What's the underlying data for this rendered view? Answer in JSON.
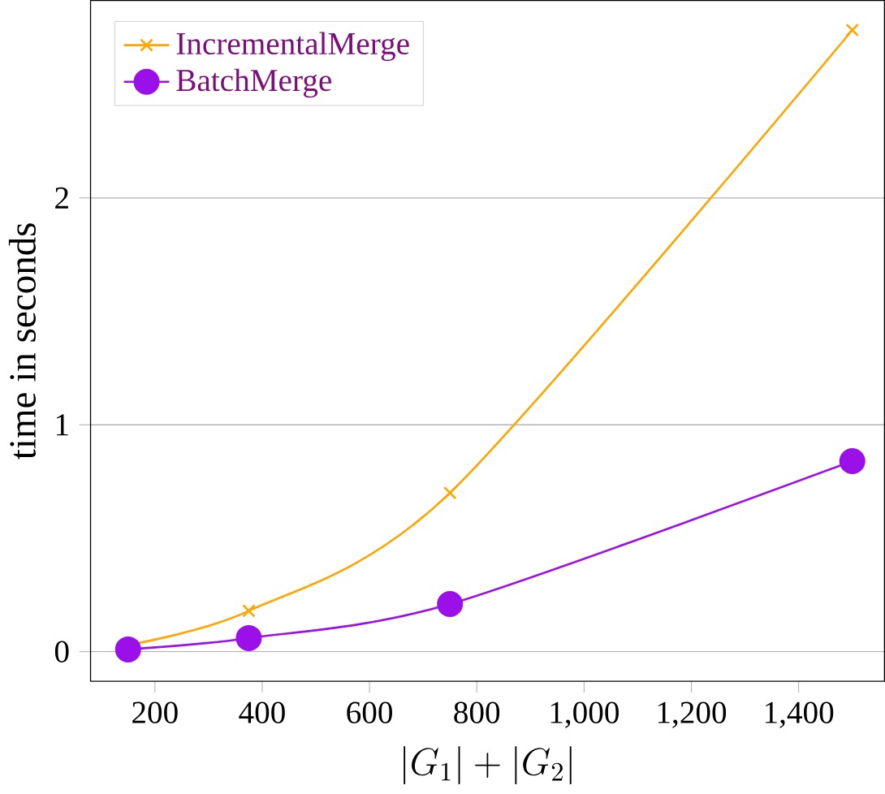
{
  "chart_data": {
    "type": "line",
    "xlabel": "|G_1| + |G_2|",
    "ylabel": "time in seconds",
    "x": [
      150,
      375,
      750,
      1500
    ],
    "series": [
      {
        "name": "IncrementalMerge",
        "color": "#ffa500",
        "marker": "cross",
        "values": [
          0.03,
          0.18,
          0.7,
          2.74
        ]
      },
      {
        "name": "BatchMerge",
        "color": "#9b0fe8",
        "marker": "circle",
        "values": [
          0.01,
          0.06,
          0.21,
          0.84
        ]
      }
    ],
    "xlim": [
      80,
      1560
    ],
    "ylim": [
      -0.13,
      2.87
    ],
    "xticks": [
      200,
      400,
      600,
      800,
      {
        "value": 1000,
        "label": "1,000"
      },
      {
        "value": 1200,
        "label": "1,200"
      },
      {
        "value": 1400,
        "label": "1,400"
      }
    ],
    "yticks": [
      0,
      1,
      2
    ],
    "grid": "y",
    "legend": "top left",
    "line_style": "solid"
  }
}
